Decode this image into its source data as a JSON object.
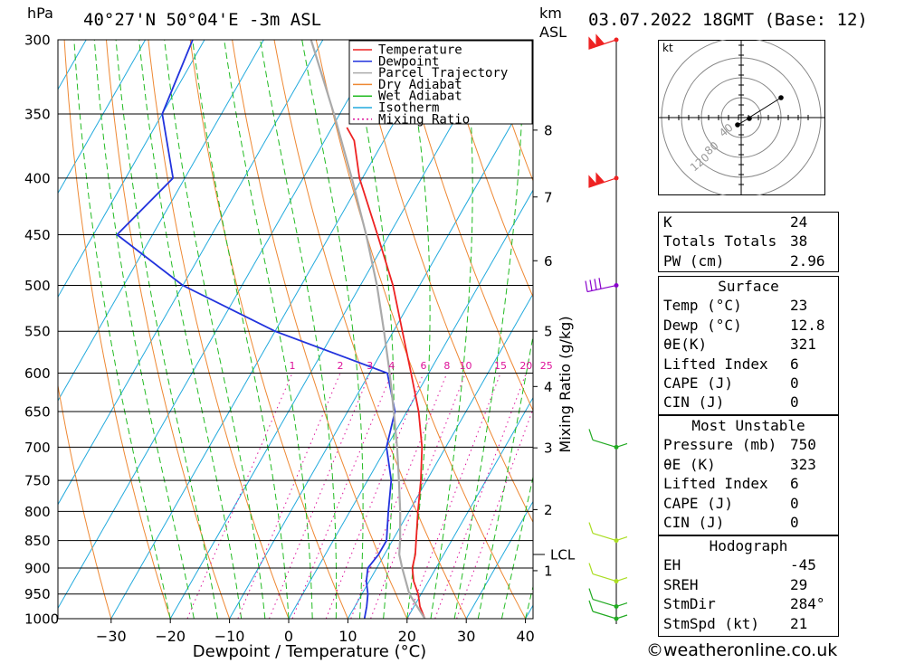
{
  "header": {
    "location": "40°27'N 50°04'E -3m ASL",
    "datetime": "03.07.2022 18GMT (Base: 12)",
    "pressure_unit": "hPa",
    "height_unit_km": "km",
    "height_unit_asl": "ASL"
  },
  "chart_data": {
    "type": "line",
    "title": "40°27'N 50°04'E -3m ASL",
    "xlabel": "Dewpoint / Temperature (°C)",
    "ylabel": "hPa",
    "right_label": "Mixing Ratio (g/kg)",
    "x_ticks": [
      -30,
      -20,
      -10,
      0,
      10,
      20,
      30,
      40
    ],
    "xlim": [
      -38,
      40
    ],
    "pressure_levels": [
      300,
      350,
      400,
      450,
      500,
      550,
      600,
      650,
      700,
      750,
      800,
      850,
      900,
      950,
      1000
    ],
    "ylim": [
      1000,
      300
    ],
    "km_ticks": [
      {
        "label": "1",
        "p": 905
      },
      {
        "label": "2",
        "p": 797
      },
      {
        "label": "3",
        "p": 701
      },
      {
        "label": "4",
        "p": 617
      },
      {
        "label": "5",
        "p": 550
      },
      {
        "label": "6",
        "p": 475
      },
      {
        "label": "7",
        "p": 416
      },
      {
        "label": "8",
        "p": 362
      }
    ],
    "lcl": {
      "label": "LCL",
      "p": 875
    },
    "mixing_ratio_labels": [
      "1",
      "2",
      "3",
      "4",
      "6",
      "8",
      "10",
      "15",
      "20",
      "25"
    ],
    "mixing_ratio_values": [
      1,
      2,
      3,
      4,
      6,
      8,
      10,
      15,
      20,
      25
    ],
    "legend": [
      "Temperature",
      "Dewpoint",
      "Parcel Trajectory",
      "Dry Adiabat",
      "Wet Adiabat",
      "Isotherm",
      "Mixing Ratio"
    ],
    "series": [
      {
        "name": "Temperature",
        "color": "#ee2222",
        "points": [
          [
            1000,
            23
          ],
          [
            975,
            21
          ],
          [
            950,
            19.5
          ],
          [
            925,
            17.5
          ],
          [
            900,
            16
          ],
          [
            875,
            15.2
          ],
          [
            850,
            14
          ],
          [
            800,
            11.5
          ],
          [
            750,
            9
          ],
          [
            700,
            6
          ],
          [
            650,
            2
          ],
          [
            600,
            -3
          ],
          [
            550,
            -8.5
          ],
          [
            500,
            -14.5
          ],
          [
            450,
            -22
          ],
          [
            400,
            -30.5
          ],
          [
            370,
            -35
          ],
          [
            360,
            -37.5
          ]
        ]
      },
      {
        "name": "Dewpoint",
        "color": "#2233dd",
        "points": [
          [
            1000,
            12.8
          ],
          [
            975,
            12
          ],
          [
            950,
            11
          ],
          [
            925,
            9.5
          ],
          [
            900,
            8.5
          ],
          [
            875,
            9
          ],
          [
            850,
            9
          ],
          [
            800,
            6.5
          ],
          [
            750,
            4
          ],
          [
            700,
            0
          ],
          [
            650,
            -2
          ],
          [
            600,
            -7
          ],
          [
            550,
            -30
          ],
          [
            500,
            -50
          ],
          [
            450,
            -66
          ],
          [
            400,
            -62
          ],
          [
            350,
            -70
          ],
          [
            300,
            -72
          ]
        ]
      },
      {
        "name": "Parcel Trajectory",
        "color": "#aaaaaa",
        "points": [
          [
            1000,
            23
          ],
          [
            950,
            18
          ],
          [
            900,
            14.3
          ],
          [
            875,
            12.5
          ],
          [
            850,
            11.3
          ],
          [
            800,
            8.5
          ],
          [
            750,
            5.3
          ],
          [
            700,
            1.8
          ],
          [
            650,
            -2.2
          ],
          [
            600,
            -6.6
          ],
          [
            550,
            -11.6
          ],
          [
            500,
            -17.2
          ],
          [
            450,
            -23.9
          ],
          [
            400,
            -31.8
          ],
          [
            350,
            -41
          ],
          [
            300,
            -52
          ]
        ]
      }
    ],
    "winds": [
      {
        "p": 300,
        "color": "#ee2222"
      },
      {
        "p": 400,
        "color": "#ee2222"
      },
      {
        "p": 500,
        "color": "#8800cc"
      },
      {
        "p": 700,
        "color": "#22aa22"
      },
      {
        "p": 850,
        "color": "#aadd22"
      },
      {
        "p": 925,
        "color": "#aadd22"
      },
      {
        "p": 975,
        "color": "#22aa22"
      },
      {
        "p": 1000,
        "color": "#22aa22"
      }
    ],
    "hodograph": {
      "unit": "kt",
      "rings": [
        "40",
        "80",
        "120"
      ]
    },
    "colors": {
      "temperature": "#ee2222",
      "dewpoint": "#2233dd",
      "parcel": "#aaaaaa",
      "dry_adiabat": "#ee8833",
      "wet_adiabat": "#22bb22",
      "isotherm": "#22aadd",
      "mixing_ratio": "#dd1199"
    }
  },
  "indices": {
    "rows": [
      {
        "k": "K",
        "v": "24"
      },
      {
        "k": "Totals Totals",
        "v": "38"
      },
      {
        "k": "PW (cm)",
        "v": "2.96"
      }
    ]
  },
  "surface": {
    "title": "Surface",
    "rows": [
      {
        "k": "Temp (°C)",
        "v": "23"
      },
      {
        "k": "Dewp (°C)",
        "v": "12.8"
      },
      {
        "k": "θE(K)",
        "v": "321"
      },
      {
        "k": "Lifted Index",
        "v": "6"
      },
      {
        "k": "CAPE (J)",
        "v": "0"
      },
      {
        "k": "CIN (J)",
        "v": "0"
      }
    ]
  },
  "most_unstable": {
    "title": "Most Unstable",
    "rows": [
      {
        "k": "Pressure (mb)",
        "v": "750"
      },
      {
        "k": "θE (K)",
        "v": "323"
      },
      {
        "k": "Lifted Index",
        "v": "6"
      },
      {
        "k": "CAPE (J)",
        "v": "0"
      },
      {
        "k": "CIN (J)",
        "v": "0"
      }
    ]
  },
  "hodograph_table": {
    "title": "Hodograph",
    "rows": [
      {
        "k": "EH",
        "v": "-45"
      },
      {
        "k": "SREH",
        "v": "29"
      },
      {
        "k": "StmDir",
        "v": "284°"
      },
      {
        "k": "StmSpd (kt)",
        "v": "21"
      }
    ]
  },
  "copyright": "©weatheronline.co.uk"
}
